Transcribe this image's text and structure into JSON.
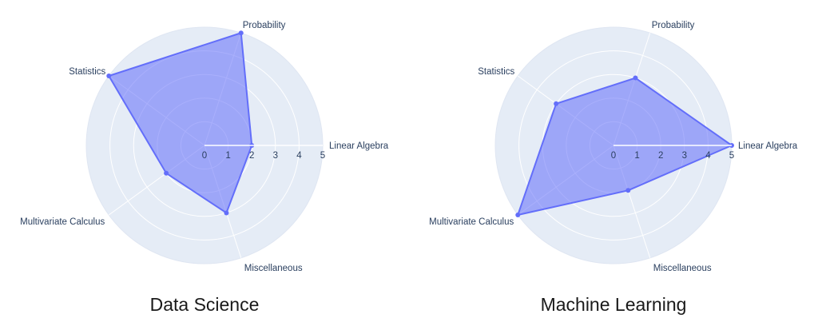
{
  "chart_data": [
    {
      "type": "radar",
      "title": "Data Science",
      "categories": [
        "Linear Algebra",
        "Probability",
        "Statistics",
        "Multivariate Calculus",
        "Miscellaneous"
      ],
      "values": [
        2,
        5,
        5,
        2,
        3
      ],
      "radial_range": [
        0,
        5
      ],
      "radial_ticks": [
        0,
        1,
        2,
        3,
        4,
        5
      ],
      "grid": true,
      "fill_color": "#636efa",
      "background": "#e5ecf6"
    },
    {
      "type": "radar",
      "title": "Machine Learning",
      "categories": [
        "Linear Algebra",
        "Probability",
        "Statistics",
        "Multivariate Calculus",
        "Miscellaneous"
      ],
      "values": [
        5,
        3,
        3,
        5,
        2
      ],
      "radial_range": [
        0,
        5
      ],
      "radial_ticks": [
        0,
        1,
        2,
        3,
        4,
        5
      ],
      "grid": true,
      "fill_color": "#636efa",
      "background": "#e5ecf6"
    }
  ]
}
